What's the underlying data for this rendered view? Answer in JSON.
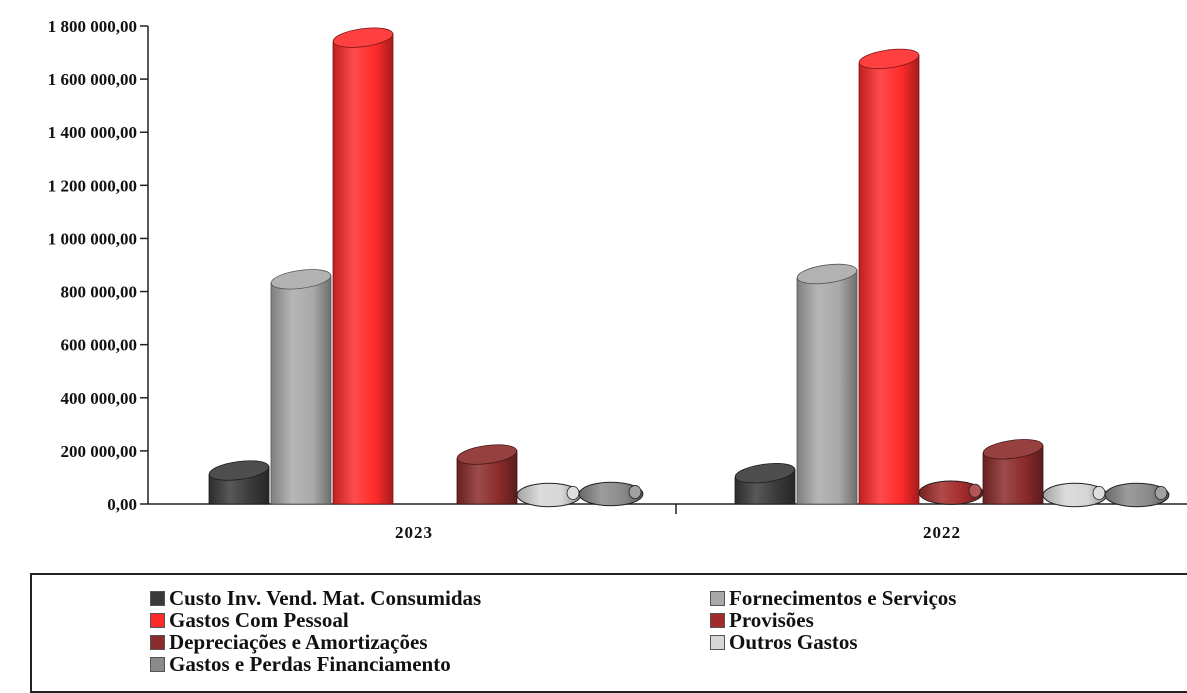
{
  "chart_data": {
    "type": "bar",
    "categories": [
      "2023",
      "2022"
    ],
    "ylim": [
      0,
      1800000
    ],
    "yticks": [
      "0,00",
      "200 000,00",
      "400 000,00",
      "600 000,00",
      "800 000,00",
      "1 000 000,00",
      "1 200 000,00",
      "1 400 000,00",
      "1 600 000,00",
      "1 800 000,00"
    ],
    "legend_placement": "bottom",
    "series": [
      {
        "name": "Custo Inv. Vend. Mat. Consumidas",
        "color": "#3a3a3a",
        "values": [
          160000,
          150000
        ]
      },
      {
        "name": "Fornecimentos e Serviços",
        "color": "#a9a9a9",
        "values": [
          880000,
          900000
        ]
      },
      {
        "name": "Gastos Com Pessoal",
        "color": "#ff2b2b",
        "values": [
          1790000,
          1710000
        ]
      },
      {
        "name": "Provisões",
        "color": "#a32a2a",
        "values": [
          0,
          70000
        ]
      },
      {
        "name": "Depreciações e Amortizações",
        "color": "#8b2b2b",
        "values": [
          220000,
          240000
        ]
      },
      {
        "name": "Outros Gastos",
        "color": "#d6d6d6",
        "values": [
          40000,
          40000
        ]
      },
      {
        "name": "Gastos e Perdas  Financiamento",
        "color": "#8a8a8a",
        "values": [
          60000,
          50000
        ]
      }
    ]
  }
}
